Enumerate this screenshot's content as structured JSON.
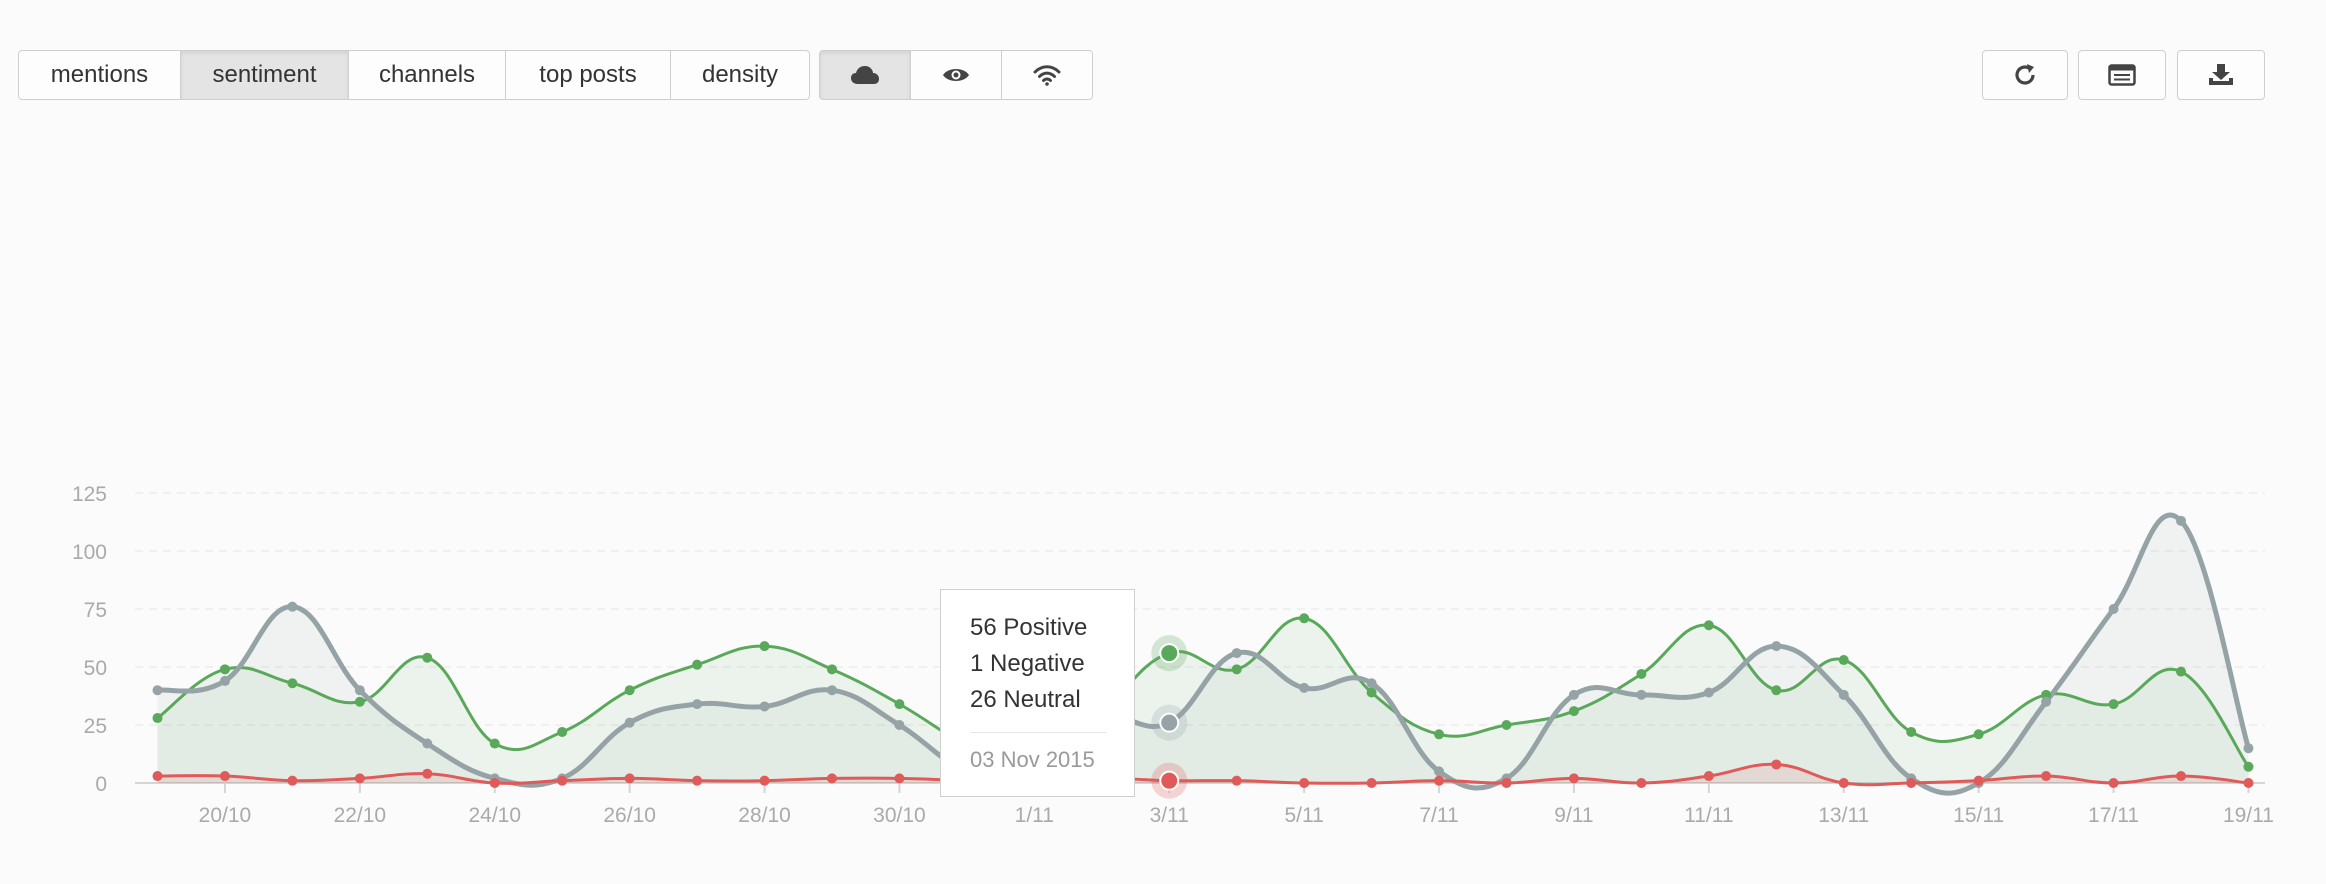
{
  "toolbar": {
    "tabs": [
      {
        "label": "mentions",
        "active": false
      },
      {
        "label": "sentiment",
        "active": true
      },
      {
        "label": "channels",
        "active": false
      },
      {
        "label": "top posts",
        "active": false
      },
      {
        "label": "density",
        "active": false
      }
    ],
    "views": [
      {
        "icon": "cloud-icon",
        "active": true
      },
      {
        "icon": "eye-icon",
        "active": false
      },
      {
        "icon": "wifi-icon",
        "active": false
      }
    ],
    "actions": [
      {
        "icon": "refresh-icon"
      },
      {
        "icon": "table-icon"
      },
      {
        "icon": "download-icon"
      }
    ]
  },
  "tooltip": {
    "positive": "56 Positive",
    "negative": "1 Negative",
    "neutral": "26 Neutral",
    "date": "03 Nov 2015"
  },
  "colors": {
    "positive": "#5aa95a",
    "negative": "#e05a5a",
    "neutral": "#95a3a6"
  },
  "chart_data": {
    "type": "line",
    "x": [
      "19/10",
      "20/10",
      "21/10",
      "22/10",
      "23/10",
      "24/10",
      "25/10",
      "26/10",
      "27/10",
      "28/10",
      "29/10",
      "30/10",
      "31/10",
      "1/11",
      "2/11",
      "3/11",
      "4/11",
      "5/11",
      "6/11",
      "7/11",
      "8/11",
      "9/11",
      "10/11",
      "11/11",
      "12/11",
      "13/11",
      "14/11",
      "15/11",
      "16/11",
      "17/11",
      "18/11",
      "19/11"
    ],
    "xticks": [
      "20/10",
      "22/10",
      "24/10",
      "26/10",
      "28/10",
      "30/10",
      "1/11",
      "3/11",
      "5/11",
      "7/11",
      "9/11",
      "11/11",
      "13/11",
      "15/11",
      "17/11",
      "19/11"
    ],
    "yticks": [
      0,
      25,
      50,
      75,
      100,
      125
    ],
    "ylim": [
      0,
      125
    ],
    "grid": true,
    "highlight_index": 15,
    "series": [
      {
        "key": "positive",
        "values": [
          28,
          49,
          43,
          35,
          54,
          17,
          22,
          40,
          51,
          59,
          49,
          34,
          16,
          2,
          30,
          56,
          49,
          71,
          39,
          21,
          25,
          31,
          47,
          68,
          40,
          53,
          22,
          21,
          38,
          34,
          48,
          7
        ]
      },
      {
        "key": "negative",
        "values": [
          3,
          3,
          1,
          2,
          4,
          0,
          1,
          2,
          1,
          1,
          2,
          2,
          1,
          0,
          2,
          1,
          1,
          0,
          0,
          1,
          0,
          2,
          0,
          3,
          8,
          0,
          0,
          1,
          3,
          0,
          3,
          0
        ]
      },
      {
        "key": "neutral",
        "values": [
          40,
          44,
          76,
          40,
          17,
          2,
          2,
          26,
          34,
          33,
          40,
          25,
          5,
          2,
          27,
          26,
          56,
          41,
          43,
          5,
          2,
          38,
          38,
          39,
          59,
          38,
          2,
          0,
          35,
          75,
          113,
          15
        ]
      }
    ]
  }
}
